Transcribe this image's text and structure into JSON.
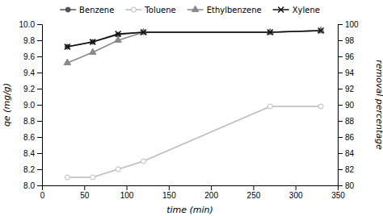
{
  "chart_data": {
    "type": "line",
    "x": [
      30,
      60,
      90,
      120,
      270,
      330
    ],
    "series": [
      {
        "name": "Benzene",
        "color": "#555555",
        "marker": "circle",
        "values": [
          9.72,
          9.78,
          9.87,
          9.9,
          9.9,
          9.92
        ]
      },
      {
        "name": "Toluene",
        "color": "#bbbbbb",
        "marker": "open-circle",
        "values": [
          8.1,
          8.1,
          8.2,
          8.3,
          8.98,
          8.98
        ]
      },
      {
        "name": "Ethylbenzene",
        "color": "#888888",
        "marker": "triangle",
        "values": [
          9.52,
          9.65,
          9.8,
          9.9,
          9.9,
          9.92
        ]
      },
      {
        "name": "Xylene",
        "color": "#111111",
        "marker": "x",
        "values": [
          9.72,
          9.78,
          9.88,
          9.9,
          9.9,
          9.92
        ]
      }
    ],
    "xlabel": "time (min)",
    "ylabel": "qe (mg/g)",
    "y2label": "removal percentage",
    "xlim": [
      0,
      350
    ],
    "ylim": [
      8.0,
      10.0
    ],
    "y2lim": [
      80,
      100
    ],
    "xticks": [
      0,
      50,
      100,
      150,
      200,
      250,
      300,
      350
    ],
    "yticks": [
      {
        "value": 8.0,
        "label": "8.0"
      },
      8.2,
      8.4,
      8.6,
      8.8,
      {
        "value": 9.0,
        "label": "9.0"
      },
      9.2,
      9.4,
      9.6,
      9.8,
      {
        "value": 10.0,
        "label": "10.0"
      }
    ],
    "y2ticks": [
      80,
      82,
      84,
      86,
      88,
      90,
      92,
      94,
      96,
      98,
      100
    ],
    "grid": false,
    "legend": "top"
  }
}
